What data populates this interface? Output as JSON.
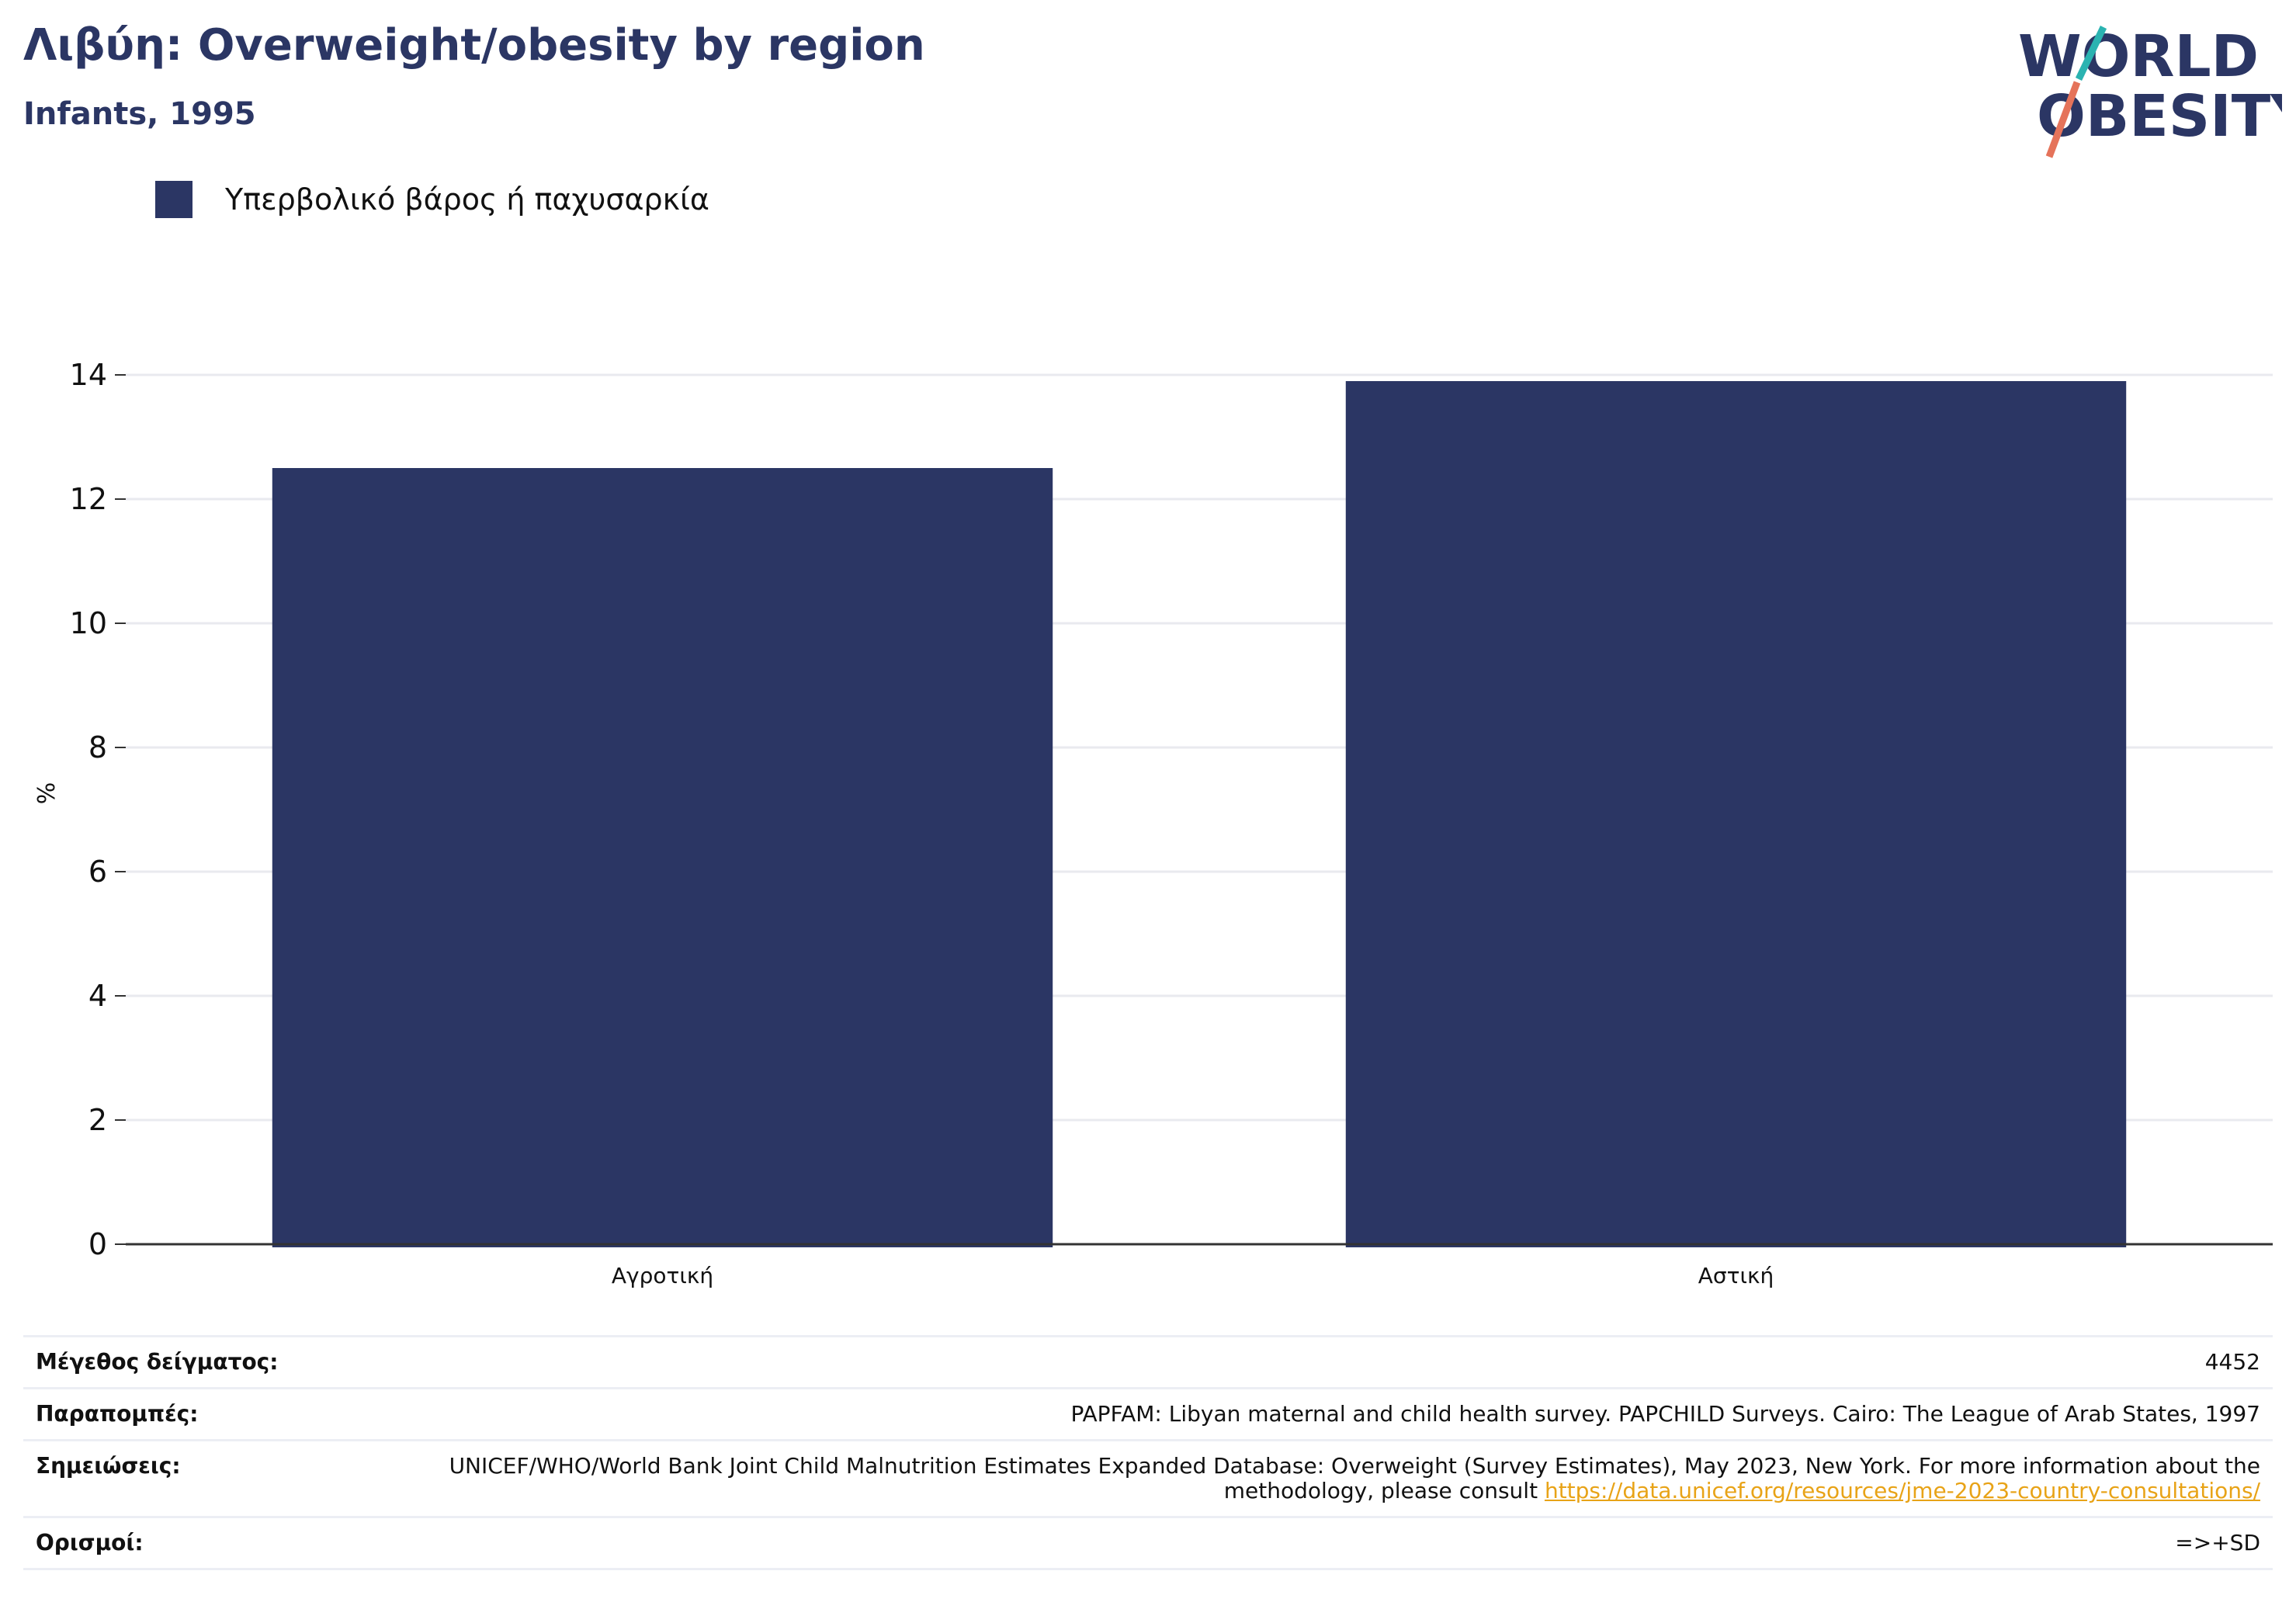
{
  "header": {
    "title": "Λιβύη: Overweight/obesity by region",
    "subtitle": "Infants, 1995"
  },
  "logo": {
    "line1": "WORLD",
    "line2": "OBESITY",
    "colors": {
      "text": "#2b3664",
      "slash_top": "#2bb3b1",
      "slash_bottom": "#e5735a"
    }
  },
  "chart_data": {
    "type": "bar",
    "categories": [
      "Αγροτική",
      "Αστική"
    ],
    "series": [
      {
        "name": "Υπερβολικό βάρος ή παχυσαρκία",
        "values": [
          12.5,
          13.9
        ],
        "color": "#2b3664"
      }
    ],
    "xlabel": "",
    "ylabel": "%",
    "ylim": [
      0,
      14
    ],
    "yticks": [
      0,
      2,
      4,
      6,
      8,
      10,
      12,
      14
    ],
    "grid": true,
    "legend_position": "top-left"
  },
  "info": {
    "sample_size": {
      "label": "Μέγεθος δείγματος:",
      "value": "4452"
    },
    "references": {
      "label": "Παραπομπές:",
      "value": "PAPFAM: Libyan maternal and child health survey. PAPCHILD Surveys. Cairo: The League of Arab States, 1997"
    },
    "notes": {
      "label": "Σημειώσεις:",
      "text": "UNICEF/WHO/World Bank Joint Child Malnutrition Estimates Expanded Database: Overweight (Survey Estimates), May 2023, New York. For more information about the methodology, please consult ",
      "link": "https://data.unicef.org/resources/jme-2023-country-consultations/"
    },
    "definitions": {
      "label": "Ορισμοί:",
      "value": "=>+SD"
    }
  }
}
